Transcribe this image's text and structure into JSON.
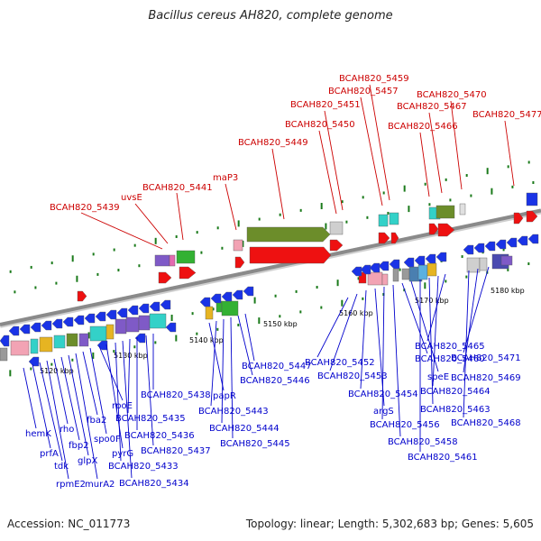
{
  "title": "Bacillus cereus AH820, complete genome",
  "footer": {
    "accession": "Accession: NC_011773",
    "topology": "Topology: linear; Length: 5,302,683 bp; Genes: 5,605"
  },
  "colors": {
    "top_label": "#cc0000",
    "bottom_label": "#0000cc",
    "backbone": "#8a8a8a",
    "tick": "#1a7a1a"
  },
  "scale_labels": [
    "5120 kbp",
    "5130 kbp",
    "5140 kbp",
    "5150 kbp",
    "5160 kbp",
    "5170 kbp",
    "5180 kbp"
  ],
  "top_labels": [
    "BCAH820_5439",
    "uvsE",
    "BCAH820_5441",
    "maP3",
    "BCAH820_5449",
    "BCAH820_5450",
    "BCAH820_5451",
    "BCAH820_5457",
    "BCAH820_5459",
    "BCAH820_5466",
    "BCAH820_5467",
    "BCAH820_5470",
    "BCAH820_5477"
  ],
  "bottom_labels": [
    "hemK",
    "prfA",
    "tdk",
    "rpmE2",
    "rho",
    "fbp2",
    "glpX",
    "murA2",
    "fba2",
    "spo0F",
    "rpoE",
    "pyrG",
    "BCAH820_5433",
    "BCAH820_5434",
    "BCAH820_5435",
    "BCAH820_5436",
    "BCAH820_5437",
    "BCAH820_5438",
    "papR",
    "BCAH820_5443",
    "BCAH820_5444",
    "BCAH820_5445",
    "BCAH820_5446",
    "BCAH820_5447",
    "BCAH820_5452",
    "BCAH820_5453",
    "BCAH820_5454",
    "argS",
    "BCAH820_5456",
    "BCAH820_5458",
    "BCAH820_5460",
    "speE",
    "BCAH820_5461",
    "BCAH820_5463",
    "BCAH820_5464",
    "BCAH820_5465",
    "BCAH820_5468",
    "BCAH820_5469",
    "BCAH820_5471"
  ]
}
